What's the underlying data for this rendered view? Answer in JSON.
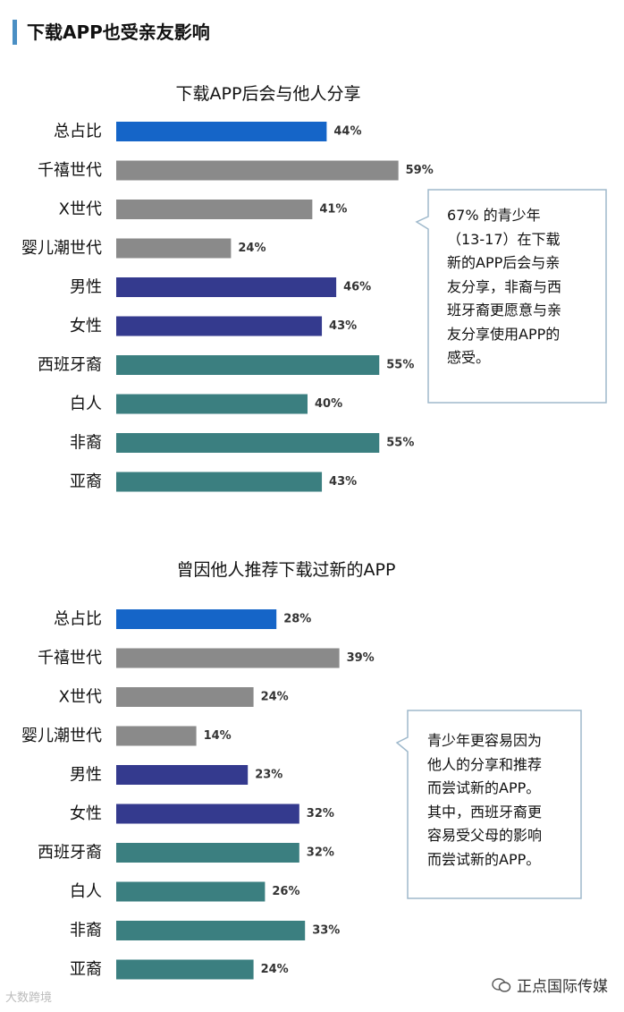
{
  "header": {
    "title": "下载APP也受亲友影响"
  },
  "colors": {
    "overall": "#1565c8",
    "generation": "#8a8a8a",
    "gender": "#343a8e",
    "ethnicity": "#3b7f80"
  },
  "chart_data": [
    {
      "type": "bar",
      "orientation": "horizontal",
      "title": "下载APP后会与他人分享",
      "categories": [
        "总占比",
        "千禧世代",
        "X世代",
        "婴儿潮世代",
        "男性",
        "女性",
        "西班牙裔",
        "白人",
        "非裔",
        "亚裔"
      ],
      "values": [
        44,
        59,
        41,
        24,
        46,
        43,
        55,
        40,
        55,
        43
      ],
      "value_labels": [
        "44%",
        "59%",
        "41%",
        "24%",
        "46%",
        "43%",
        "55%",
        "40%",
        "55%",
        "43%"
      ],
      "groups": [
        "overall",
        "generation",
        "generation",
        "generation",
        "gender",
        "gender",
        "ethnicity",
        "ethnicity",
        "ethnicity",
        "ethnicity"
      ],
      "xlim": [
        0,
        100
      ],
      "xlabel": "",
      "ylabel": "",
      "callout": "67% 的青少年\n（13-17）在下载\n新的APP后会与亲\n友分享，非裔与西\n班牙裔更愿意与亲\n友分享使用APP的\n感受。"
    },
    {
      "type": "bar",
      "orientation": "horizontal",
      "title": "曾因他人推荐下载过新的APP",
      "categories": [
        "总占比",
        "千禧世代",
        "X世代",
        "婴儿潮世代",
        "男性",
        "女性",
        "西班牙裔",
        "白人",
        "非裔",
        "亚裔"
      ],
      "values": [
        28,
        39,
        24,
        14,
        23,
        32,
        32,
        26,
        33,
        24
      ],
      "value_labels": [
        "28%",
        "39%",
        "24%",
        "14%",
        "23%",
        "32%",
        "32%",
        "26%",
        "33%",
        "24%"
      ],
      "groups": [
        "overall",
        "generation",
        "generation",
        "generation",
        "gender",
        "gender",
        "ethnicity",
        "ethnicity",
        "ethnicity",
        "ethnicity"
      ],
      "xlim": [
        0,
        100
      ],
      "xlabel": "",
      "ylabel": "",
      "callout": "青少年更容易因为\n他人的分享和推荐\n而尝试新的APP。\n其中，西班牙裔更\n容易受父母的影响\n而尝试新的APP。"
    }
  ],
  "watermarks": {
    "left": "大数跨境",
    "right": "正点国际传媒"
  }
}
